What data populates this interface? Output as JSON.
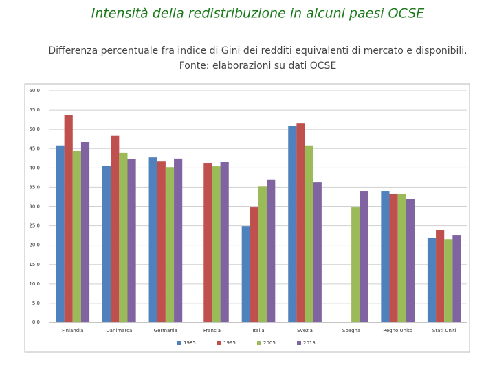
{
  "chart_data": {
    "type": "bar",
    "title": "Intensità della redistribuzione in alcuni paesi OCSE",
    "subtitle": [
      "Differenza percentuale fra indice di Gini dei redditi equivalenti di mercato e disponibili.",
      "Fonte: elaborazioni su dati OCSE"
    ],
    "categories": [
      "Finlandia",
      "Danimarca",
      "Germania",
      "Francia",
      "Italia",
      "Svezia",
      "Spagna",
      "Regno Unito",
      "Stati Uniti"
    ],
    "series": [
      {
        "name": "1985",
        "color": "#4f81bd",
        "values": [
          45.8,
          40.6,
          42.7,
          null,
          24.9,
          50.8,
          null,
          34.0,
          21.9
        ]
      },
      {
        "name": "1995",
        "color": "#c0504d",
        "values": [
          53.7,
          48.3,
          41.8,
          41.3,
          29.9,
          51.6,
          null,
          33.3,
          24.0
        ]
      },
      {
        "name": "2005",
        "color": "#9bbb59",
        "values": [
          44.5,
          44.0,
          40.2,
          40.4,
          35.2,
          45.8,
          29.9,
          33.3,
          21.5
        ]
      },
      {
        "name": "2013",
        "color": "#8064a2",
        "values": [
          46.8,
          42.3,
          42.4,
          41.5,
          36.9,
          36.3,
          34.0,
          31.9,
          22.6
        ]
      }
    ],
    "ylim": [
      0,
      60
    ],
    "yticks": [
      {
        "value": 0,
        "label": "0.0"
      },
      {
        "value": 5,
        "label": "5.0"
      },
      {
        "value": 10,
        "label": "10.0"
      },
      {
        "value": 15,
        "label": "15.0"
      },
      {
        "value": 20,
        "label": "20.0"
      },
      {
        "value": 25,
        "label": "25.0"
      },
      {
        "value": 30,
        "label": "30.0"
      },
      {
        "value": 35,
        "label": "35.0"
      },
      {
        "value": 40,
        "label": "40.0"
      },
      {
        "value": 45,
        "label": "45.0"
      },
      {
        "value": 50,
        "label": "50.0"
      },
      {
        "value": 55,
        "label": "55.0"
      },
      {
        "value": 60,
        "label": "60.0"
      }
    ],
    "grid": true,
    "legend": "bottom"
  }
}
